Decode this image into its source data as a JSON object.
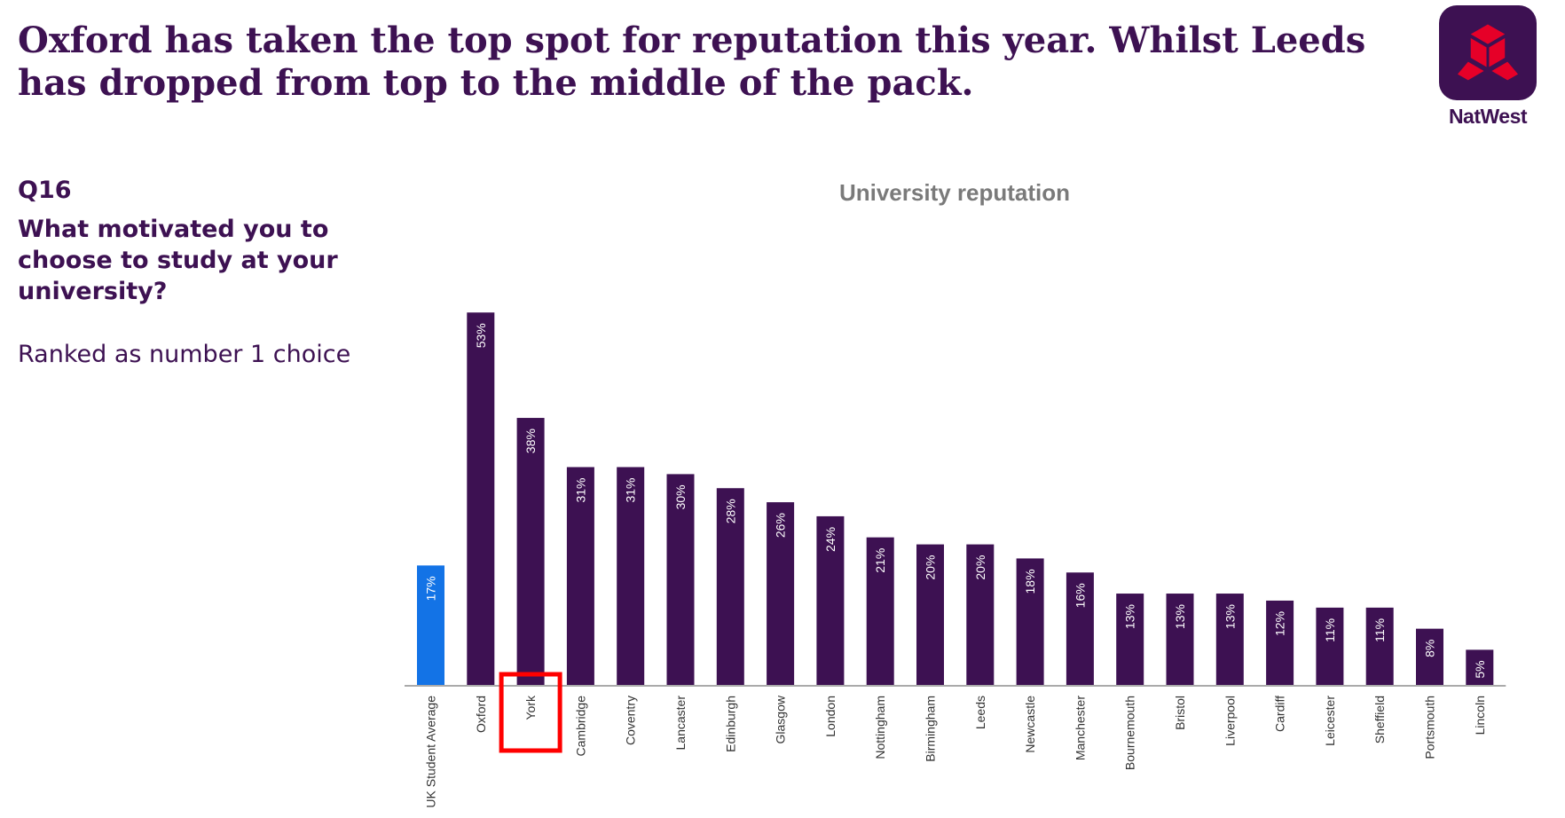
{
  "headline": "Oxford has taken the top spot for reputation this year. Whilst Leeds has dropped from top to the middle of the pack.",
  "brand": {
    "name": "NatWest",
    "logo_icon": "natwest-cubes-icon",
    "logo_bg": "#3d1152",
    "logo_color": "#e60028"
  },
  "question": {
    "label": "Q16",
    "text": "What motivated you to choose to study at your university?",
    "note": "Ranked as number 1 choice"
  },
  "highlight": {
    "category": "York",
    "color": "#ff0000"
  },
  "chart_data": {
    "type": "bar",
    "title": "University reputation",
    "xlabel": "",
    "ylabel": "",
    "ylim": [
      0,
      60
    ],
    "grid": false,
    "value_suffix": "%",
    "categories": [
      "UK Student Average",
      "Oxford",
      "York",
      "Cambridge",
      "Coventry",
      "Lancaster",
      "Edinburgh",
      "Glasgow",
      "London",
      "Nottingham",
      "Birmingham",
      "Leeds",
      "Newcastle",
      "Manchester",
      "Bournemouth",
      "Bristol",
      "Liverpool",
      "Cardiff",
      "Leicester",
      "Sheffield",
      "Portsmouth",
      "Lincoln"
    ],
    "values": [
      17,
      53,
      38,
      31,
      31,
      30,
      28,
      26,
      24,
      21,
      20,
      20,
      18,
      16,
      13,
      13,
      13,
      12,
      11,
      11,
      8,
      5
    ],
    "colors": {
      "average": "#1373e6",
      "default": "#3d1152"
    }
  }
}
